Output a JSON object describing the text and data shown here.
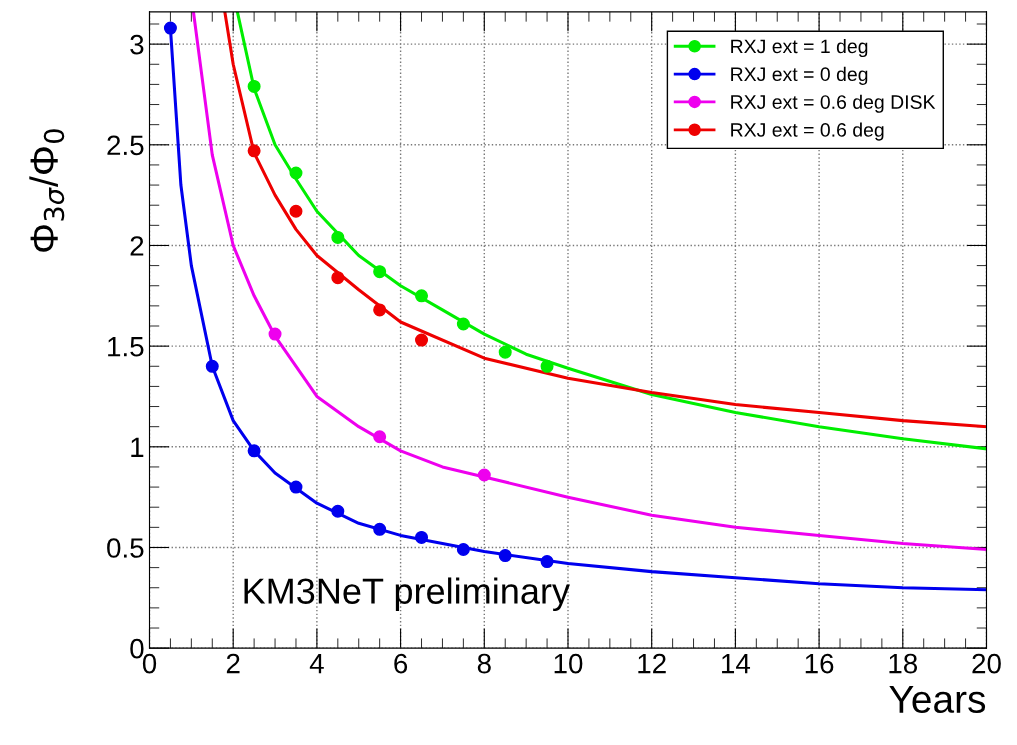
{
  "chart_data": {
    "type": "line",
    "xlabel": "Years",
    "ylabel": "Φ$_{3σ}$/Φ$_{0}$",
    "xlim": [
      0,
      20
    ],
    "ylim": [
      0,
      3.16
    ],
    "xticks": [
      0,
      2,
      4,
      6,
      8,
      10,
      12,
      14,
      16,
      18,
      20
    ],
    "yticks": [
      0,
      0.5,
      1,
      1.5,
      2,
      2.5,
      3
    ],
    "grid": true,
    "legend": "top right",
    "marker": "none",
    "line_style": "solid",
    "annotations": [
      "KM3NeT preliminary"
    ],
    "series": [
      {
        "name": "RXJ ext = 1 deg",
        "color": "#00ee00",
        "x": [
          2.1,
          2.5,
          3,
          3.5,
          4,
          5,
          6,
          7,
          8,
          9,
          10,
          12,
          14,
          16,
          18,
          20
        ],
        "values": [
          3.16,
          2.78,
          2.5,
          2.33,
          2.17,
          1.95,
          1.8,
          1.68,
          1.56,
          1.46,
          1.39,
          1.26,
          1.17,
          1.1,
          1.04,
          0.99
        ]
      },
      {
        "color": "#00ee00",
        "type": "scatter",
        "marker": "circle",
        "x": [
          2.5,
          3.5,
          4.5,
          5.5,
          6.5,
          7.5,
          8.5,
          9.5
        ],
        "values": [
          2.79,
          2.36,
          2.04,
          1.87,
          1.75,
          1.61,
          1.47,
          1.4
        ]
      },
      {
        "name": "RXJ ext = 0 deg",
        "color": "#0000ee",
        "x": [
          0.5,
          0.75,
          1,
          1.5,
          2,
          2.5,
          3,
          4,
          5,
          6,
          8,
          10,
          12,
          14,
          16,
          18,
          20
        ],
        "values": [
          3.08,
          2.3,
          1.9,
          1.4,
          1.13,
          0.98,
          0.87,
          0.72,
          0.62,
          0.56,
          0.48,
          0.42,
          0.38,
          0.35,
          0.32,
          0.3,
          0.29
        ]
      },
      {
        "color": "#0000ee",
        "type": "scatter",
        "marker": "circle",
        "x": [
          0.5,
          1.5,
          2.5,
          3.5,
          4.5,
          5.5,
          6.5,
          7.5,
          8.5,
          9.5
        ],
        "values": [
          3.08,
          1.4,
          0.98,
          0.8,
          0.68,
          0.59,
          0.55,
          0.49,
          0.46,
          0.43
        ]
      },
      {
        "name": "RXJ ext = 0.6 deg DISK",
        "color": "#ee00ee",
        "x": [
          1.05,
          1.5,
          2,
          2.5,
          3,
          4,
          5,
          6,
          7,
          8,
          10,
          12,
          14,
          16,
          18,
          20
        ],
        "values": [
          3.16,
          2.45,
          2.0,
          1.75,
          1.55,
          1.25,
          1.1,
          0.98,
          0.9,
          0.85,
          0.75,
          0.66,
          0.6,
          0.56,
          0.52,
          0.49
        ]
      },
      {
        "color": "#ee00ee",
        "type": "scatter",
        "marker": "circle",
        "x": [
          3,
          5.5,
          8
        ],
        "values": [
          1.56,
          1.05,
          0.86
        ]
      },
      {
        "name": "RXJ ext = 0.6 deg",
        "color": "#ee0000",
        "x": [
          1.8,
          2,
          2.5,
          3,
          3.5,
          4,
          5,
          6,
          8,
          10,
          12,
          14,
          16,
          18,
          20
        ],
        "values": [
          3.16,
          2.9,
          2.46,
          2.25,
          2.08,
          1.95,
          1.78,
          1.62,
          1.44,
          1.34,
          1.27,
          1.21,
          1.17,
          1.13,
          1.1
        ]
      },
      {
        "color": "#ee0000",
        "type": "scatter",
        "marker": "circle",
        "x": [
          2.5,
          3.5,
          4.5,
          5.5,
          6.5
        ],
        "values": [
          2.47,
          2.17,
          1.84,
          1.68,
          1.53
        ]
      }
    ]
  }
}
